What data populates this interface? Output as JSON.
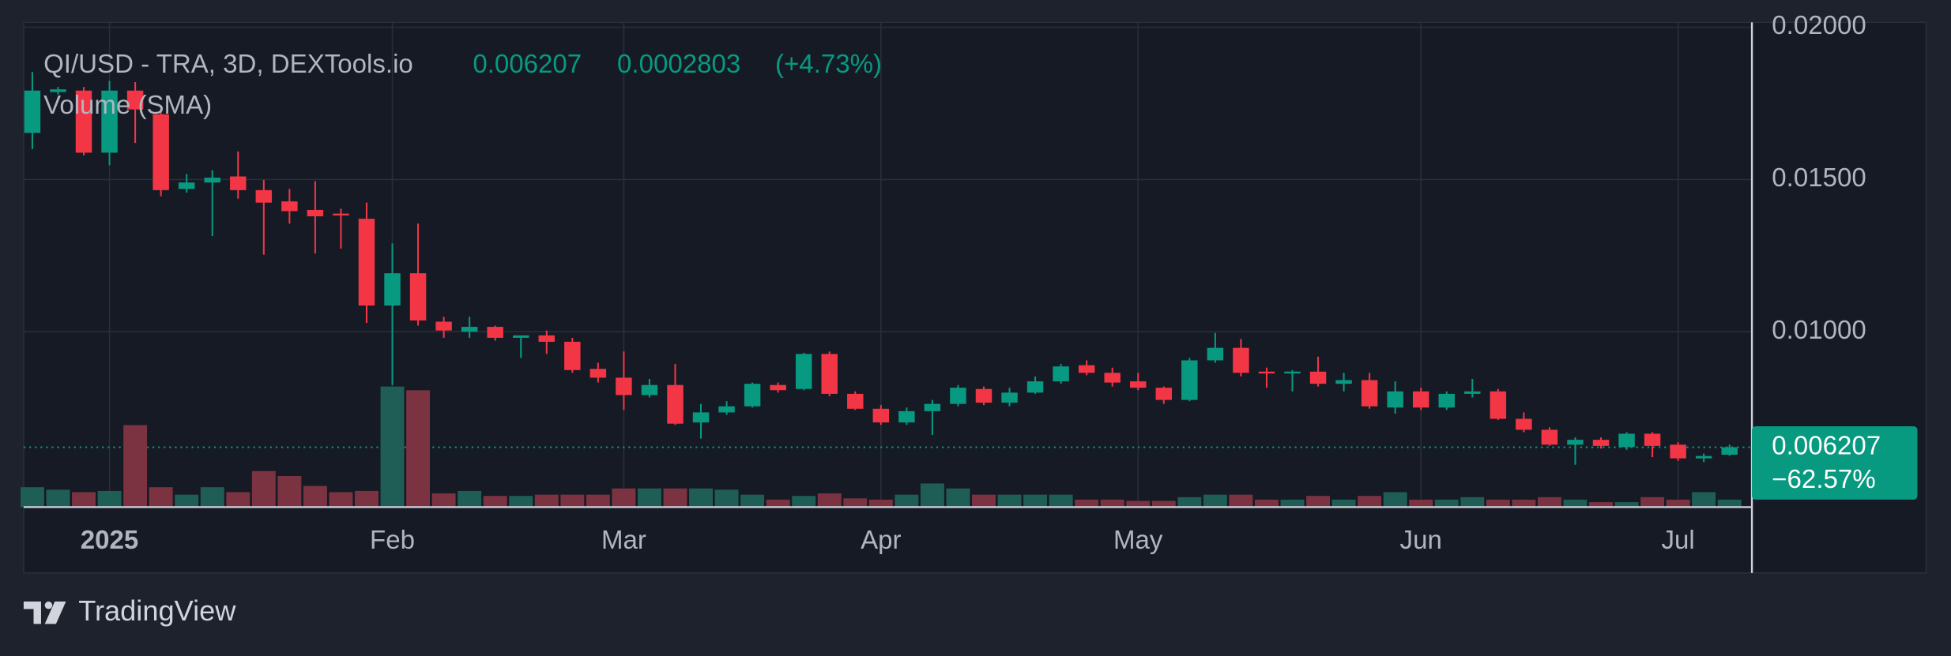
{
  "chart_data": {
    "type": "candlestick",
    "title": "QI/USD - TRA, 3D, DEXTools.io",
    "last_price": 0.006207,
    "change": 0.0002803,
    "change_percent": {
      "value": 4.73,
      "label": "(+4.73%)"
    },
    "total_change_percent": {
      "value": -62.57,
      "label": "−62.57%"
    },
    "categories": [
      null,
      null,
      null,
      "2025",
      null,
      null,
      null,
      null,
      null,
      null,
      null,
      null,
      null,
      null,
      "Feb",
      null,
      null,
      null,
      null,
      null,
      null,
      null,
      null,
      "Mar",
      null,
      null,
      null,
      null,
      null,
      null,
      null,
      null,
      null,
      "Apr",
      null,
      null,
      null,
      null,
      null,
      null,
      null,
      null,
      null,
      "May",
      null,
      null,
      null,
      null,
      null,
      null,
      null,
      null,
      null,
      null,
      "Jun",
      null,
      null,
      null,
      null,
      null,
      null,
      null,
      null,
      null,
      "Jul",
      null,
      null
    ],
    "open": [
      0.01653,
      0.01787,
      0.01792,
      0.01588,
      0.01792,
      0.01714,
      0.01469,
      0.0149,
      0.0151,
      0.01465,
      0.01428,
      0.014,
      0.01388,
      0.01371,
      0.01086,
      0.01192,
      0.01033,
      0.01,
      0.01016,
      0.0098,
      0.00988,
      0.00967,
      0.00878,
      0.00849,
      0.00792,
      0.00825,
      0.00702,
      0.00735,
      0.00755,
      0.00825,
      0.00812,
      0.00927,
      0.00796,
      0.00747,
      0.00702,
      0.00739,
      0.00763,
      0.00812,
      0.00767,
      0.008,
      0.00837,
      0.0089,
      0.00865,
      0.00837,
      0.00816,
      0.00776,
      0.00906,
      0.00947,
      0.00869,
      0.00865,
      0.00869,
      0.00829,
      0.00841,
      0.00751,
      0.00804,
      0.00751,
      0.00796,
      0.00804,
      0.00714,
      0.00678,
      0.00629,
      0.00645,
      0.00621,
      0.00665,
      0.00629,
      0.00584,
      0.00596
    ],
    "high": [
      0.01853,
      0.01804,
      0.01804,
      0.01824,
      0.0182,
      0.01722,
      0.01518,
      0.0153,
      0.01592,
      0.01498,
      0.01469,
      0.01494,
      0.01404,
      0.01424,
      0.0129,
      0.01355,
      0.01049,
      0.01049,
      0.0102,
      0.00988,
      0.01004,
      0.0098,
      0.00898,
      0.00935,
      0.00845,
      0.00894,
      0.00763,
      0.00772,
      0.00833,
      0.00833,
      0.00931,
      0.00935,
      0.00804,
      0.00759,
      0.00751,
      0.00776,
      0.00825,
      0.0082,
      0.00816,
      0.00853,
      0.00894,
      0.00906,
      0.00882,
      0.00865,
      0.0082,
      0.00914,
      0.00996,
      0.00976,
      0.00882,
      0.00874,
      0.00918,
      0.00865,
      0.00865,
      0.00837,
      0.00816,
      0.00804,
      0.00845,
      0.00812,
      0.00735,
      0.00686,
      0.00653,
      0.00653,
      0.0067,
      0.0067,
      0.00637,
      0.006,
      0.00629
    ],
    "low": [
      0.016,
      0.01779,
      0.01579,
      0.01547,
      0.0162,
      0.01445,
      0.01457,
      0.01314,
      0.01437,
      0.01253,
      0.01355,
      0.01257,
      0.01273,
      0.01029,
      0.00825,
      0.0102,
      0.0098,
      0.0098,
      0.00971,
      0.00914,
      0.00927,
      0.00865,
      0.00833,
      0.00743,
      0.00784,
      0.00694,
      0.00649,
      0.00727,
      0.00751,
      0.008,
      0.00808,
      0.00788,
      0.00743,
      0.00694,
      0.00694,
      0.00661,
      0.00755,
      0.00759,
      0.00755,
      0.00796,
      0.00829,
      0.00857,
      0.0082,
      0.00808,
      0.00763,
      0.00772,
      0.00898,
      0.00853,
      0.00816,
      0.00804,
      0.0082,
      0.00804,
      0.00747,
      0.00731,
      0.00743,
      0.00743,
      0.00784,
      0.0071,
      0.0067,
      0.00625,
      0.00563,
      0.00616,
      0.00612,
      0.00588,
      0.00576,
      0.00572,
      0.00592
    ],
    "close": [
      0.01792,
      0.01796,
      0.01588,
      0.01792,
      0.0173,
      0.01465,
      0.0149,
      0.01506,
      0.01465,
      0.01424,
      0.01396,
      0.01379,
      0.01384,
      0.01086,
      0.01192,
      0.01037,
      0.01004,
      0.01016,
      0.0098,
      0.00988,
      0.00967,
      0.00874,
      0.00849,
      0.00792,
      0.00825,
      0.00698,
      0.00735,
      0.00755,
      0.00829,
      0.00808,
      0.00927,
      0.00796,
      0.00747,
      0.00702,
      0.00739,
      0.00763,
      0.00816,
      0.00767,
      0.008,
      0.00837,
      0.00886,
      0.00865,
      0.00833,
      0.00816,
      0.00776,
      0.00906,
      0.00947,
      0.00865,
      0.00865,
      0.00869,
      0.00829,
      0.00841,
      0.00755,
      0.00804,
      0.00751,
      0.00796,
      0.00804,
      0.00714,
      0.00678,
      0.00629,
      0.00645,
      0.00625,
      0.00665,
      0.00625,
      0.00584,
      0.00592,
      0.006207
    ],
    "volume": {
      "name": "Volume (SMA)",
      "values": [
        16,
        14,
        12,
        13,
        66,
        16,
        10,
        16,
        12,
        29,
        25,
        17,
        12,
        13,
        97,
        94,
        11,
        13,
        9,
        9,
        10,
        10,
        10,
        15,
        15,
        15,
        15,
        14,
        10,
        6,
        9,
        11,
        7,
        6,
        10,
        19,
        15,
        10,
        10,
        10,
        10,
        6,
        6,
        5,
        5,
        8,
        10,
        10,
        6,
        6,
        9,
        6,
        9,
        12,
        6,
        6,
        8,
        6,
        6,
        8,
        6,
        4,
        4,
        8,
        6,
        12,
        6
      ]
    },
    "up_color": "#089981",
    "down_color": "#f23645",
    "volume_up_color": "#1f5e57",
    "volume_down_color": "#7b3342",
    "ylim": [
      0.00424,
      0.02016
    ],
    "yticks": [
      {
        "value": 0.02,
        "label": "0.02000"
      },
      {
        "value": 0.015,
        "label": "0.01500"
      },
      {
        "value": 0.01,
        "label": "0.01000"
      }
    ],
    "grid": true
  },
  "branding": "TradingView"
}
